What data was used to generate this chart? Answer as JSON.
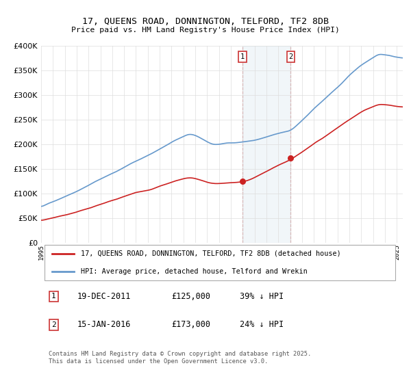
{
  "title": "17, QUEENS ROAD, DONNINGTON, TELFORD, TF2 8DB",
  "subtitle": "Price paid vs. HM Land Registry's House Price Index (HPI)",
  "ylim": [
    0,
    400000
  ],
  "yticks": [
    0,
    50000,
    100000,
    150000,
    200000,
    250000,
    300000,
    350000,
    400000
  ],
  "hpi_color": "#6699cc",
  "price_color": "#cc2222",
  "marker1_x": 2011.97,
  "marker1_y": 125000,
  "marker2_x": 2016.04,
  "marker2_y": 173000,
  "legend1_label": "17, QUEENS ROAD, DONNINGTON, TELFORD, TF2 8DB (detached house)",
  "legend2_label": "HPI: Average price, detached house, Telford and Wrekin",
  "footnote": "Contains HM Land Registry data © Crown copyright and database right 2025.\nThis data is licensed under the Open Government Licence v3.0.",
  "background_color": "#ffffff",
  "grid_color": "#dddddd",
  "xmin": 1995,
  "xmax": 2025.5
}
